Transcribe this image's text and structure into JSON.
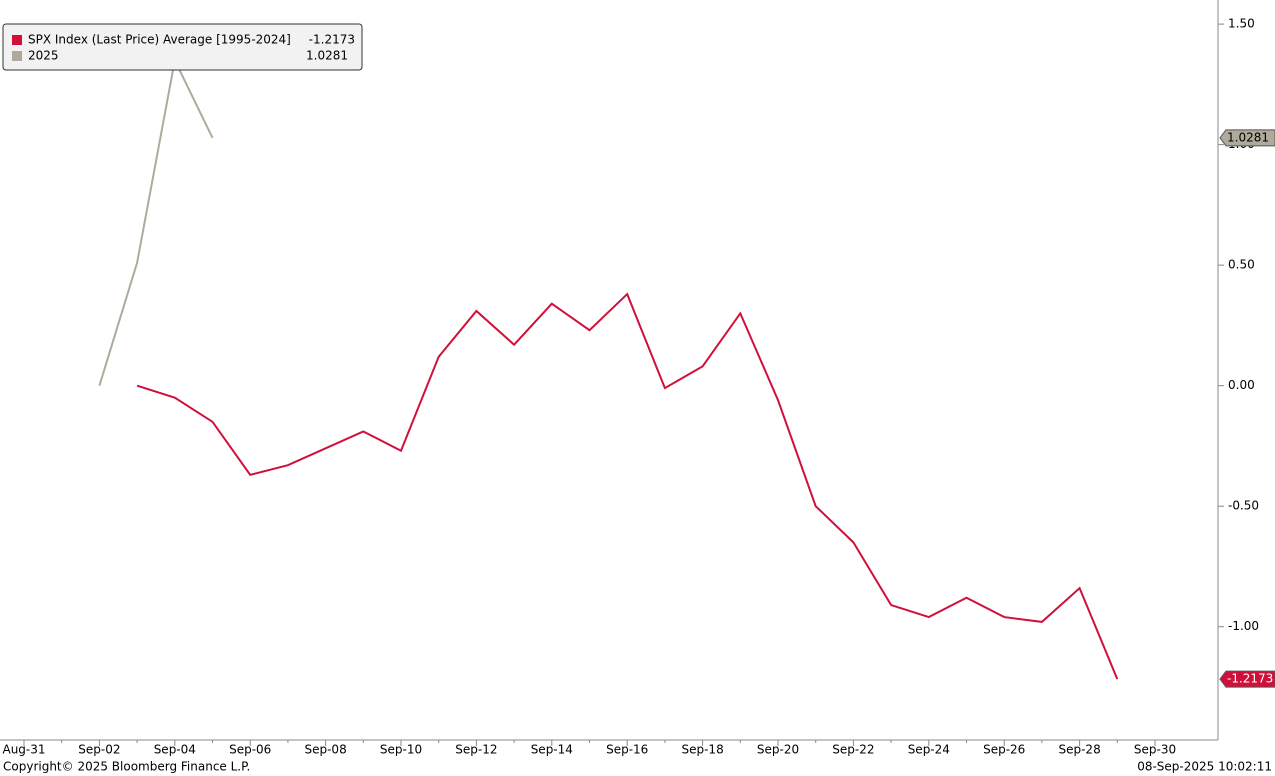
{
  "chart_data": {
    "type": "line",
    "categories": [
      "Aug-31",
      null,
      "Sep-02",
      null,
      "Sep-04",
      null,
      "Sep-06",
      null,
      "Sep-08",
      null,
      "Sep-10",
      null,
      "Sep-12",
      null,
      "Sep-14",
      null,
      "Sep-16",
      null,
      "Sep-18",
      null,
      "Sep-20",
      null,
      "Sep-22",
      null,
      "Sep-24",
      null,
      "Sep-26",
      null,
      "Sep-28",
      null,
      "Sep-30"
    ],
    "series": [
      {
        "name": "SPX Index (Last Price) Average [1995-2024]",
        "color": "#d0103a",
        "values": [
          null,
          null,
          null,
          0.0,
          -0.05,
          -0.15,
          -0.37,
          -0.33,
          -0.26,
          -0.19,
          -0.27,
          0.12,
          0.31,
          0.17,
          0.34,
          0.23,
          0.38,
          -0.01,
          0.08,
          0.3,
          -0.06,
          -0.5,
          -0.65,
          -0.91,
          -0.96,
          -0.88,
          -0.96,
          -0.98,
          -0.84,
          -1.2173,
          null
        ]
      },
      {
        "name": "2025",
        "color": "#b0aa9c",
        "values": [
          null,
          null,
          0.0,
          0.51,
          1.35,
          1.0281,
          null,
          null,
          null,
          null,
          null,
          null,
          null,
          null,
          null,
          null,
          null,
          null,
          null,
          null,
          null,
          null,
          null,
          null,
          null,
          null,
          null,
          null,
          null,
          null,
          null
        ]
      }
    ],
    "ylim": [
      -1.47,
      1.6
    ],
    "yticks": [
      {
        "value": -1,
        "label": "-1.00"
      },
      {
        "value": -0.5,
        "label": "-0.50"
      },
      {
        "value": 0,
        "label": "0.00"
      },
      {
        "value": 0.5,
        "label": "0.50"
      },
      {
        "value": 1,
        "label": "1.00"
      },
      {
        "value": 1.5,
        "label": "1.50"
      }
    ],
    "footer_left": "Copyright© 2025 Bloomberg Finance L.P.",
    "footer_right": "08-Sep-2025 10:02:11"
  }
}
